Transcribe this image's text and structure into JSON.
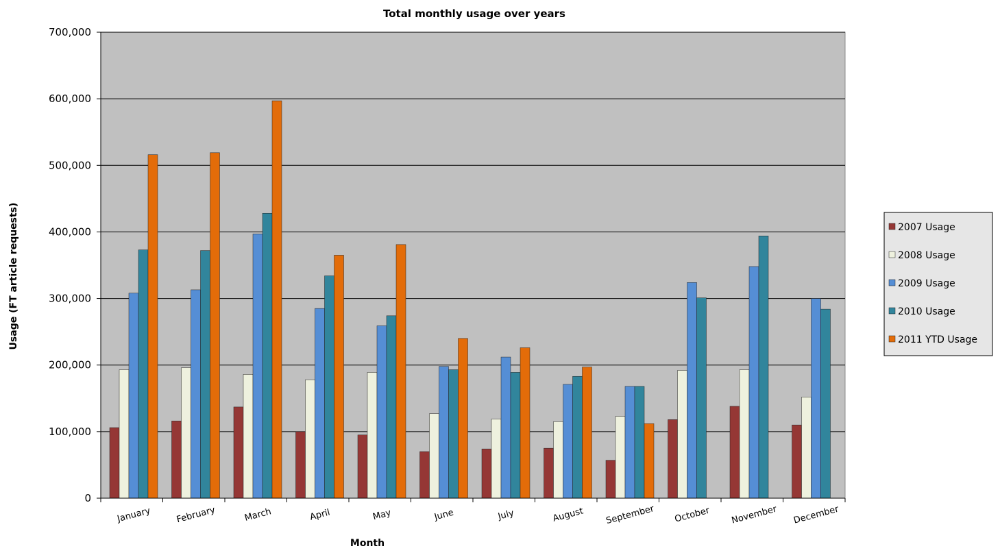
{
  "chart_data": {
    "type": "bar",
    "title": "Total monthly usage over years",
    "xlabel": "Month",
    "ylabel": "Usage (FT article requests)",
    "ylim": [
      0,
      700000
    ],
    "yticks": [
      0,
      100000,
      200000,
      300000,
      400000,
      500000,
      600000,
      700000
    ],
    "ytick_labels": [
      "0",
      "100,000",
      "200,000",
      "300,000",
      "400,000",
      "500,000",
      "600,000",
      "700,000"
    ],
    "grid": true,
    "legend_position": "right",
    "categories": [
      "January",
      "February",
      "March",
      "April",
      "May",
      "June",
      "July",
      "August",
      "September",
      "October",
      "November",
      "December"
    ],
    "series": [
      {
        "name": "2007 Usage",
        "color": "#953735",
        "values": [
          106000,
          116000,
          137000,
          100000,
          95000,
          70000,
          74000,
          75000,
          57000,
          118000,
          138000,
          110000
        ]
      },
      {
        "name": "2008 Usage",
        "color": "#EEF1DE",
        "values": [
          193000,
          196000,
          186000,
          178000,
          189000,
          127000,
          119000,
          115000,
          123000,
          192000,
          193000,
          152000
        ]
      },
      {
        "name": "2009 Usage",
        "color": "#558ED5",
        "values": [
          308000,
          313000,
          397000,
          285000,
          259000,
          198000,
          212000,
          171000,
          168000,
          324000,
          348000,
          300000
        ]
      },
      {
        "name": "2010 Usage",
        "color": "#31859C",
        "values": [
          373000,
          372000,
          428000,
          334000,
          274000,
          193000,
          189000,
          183000,
          168000,
          301000,
          394000,
          284000
        ]
      },
      {
        "name": "2011 YTD Usage",
        "color": "#E36C09",
        "values": [
          516000,
          519000,
          597000,
          365000,
          381000,
          240000,
          226000,
          197000,
          112000,
          null,
          null,
          null
        ]
      }
    ]
  },
  "colors": {
    "plot_background": "#C0C0C0",
    "legend_background": "#E6E6E6",
    "gridline": "#000000"
  }
}
